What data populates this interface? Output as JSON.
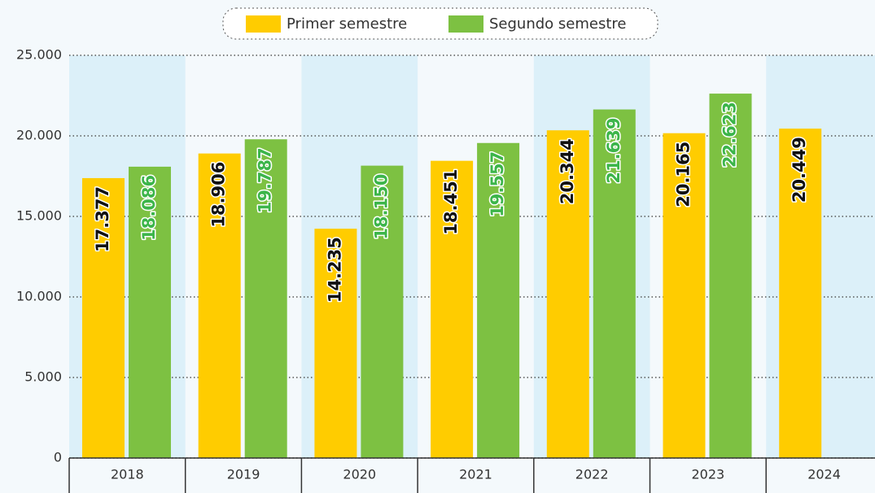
{
  "chart_data": {
    "type": "bar",
    "categories": [
      "2018",
      "2019",
      "2020",
      "2021",
      "2022",
      "2023",
      "2024"
    ],
    "series": [
      {
        "name": "Primer semestre",
        "color": "#ffcc00",
        "label_color": "#111111",
        "values": [
          17377,
          18906,
          14235,
          18451,
          20344,
          20165,
          20449
        ],
        "value_labels": [
          "17.377",
          "18.906",
          "14.235",
          "18.451",
          "20.344",
          "20.165",
          "20.449"
        ]
      },
      {
        "name": "Segundo semestre",
        "color": "#7dc142",
        "label_color": "#3cb54a",
        "values": [
          18086,
          19787,
          18150,
          19557,
          21639,
          22623,
          null
        ],
        "value_labels": [
          "18.086",
          "19.787",
          "18.150",
          "19.557",
          "21.639",
          "22.623",
          null
        ]
      }
    ],
    "ylim": [
      0,
      25000
    ],
    "yticks": [
      0,
      {
        "value": 5000,
        "label": "5.000"
      },
      {
        "value": 10000,
        "label": "10.000"
      },
      {
        "value": 15000,
        "label": "15.000"
      },
      {
        "value": 20000,
        "label": "20.000"
      },
      {
        "value": 25000,
        "label": "25.000"
      }
    ],
    "grid": true,
    "legend": "top"
  }
}
